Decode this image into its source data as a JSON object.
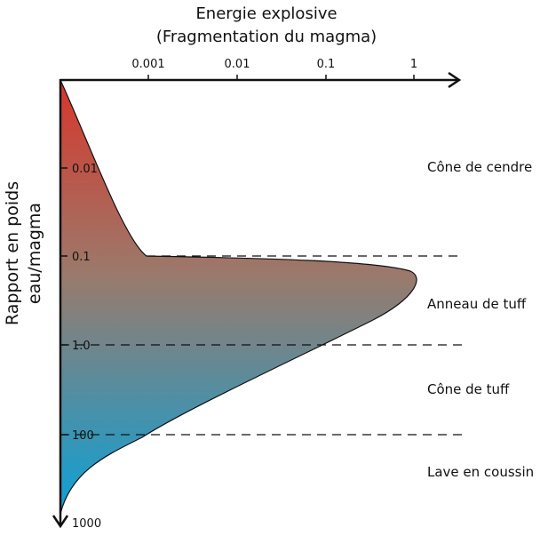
{
  "title_line1": "Energie explosive",
  "title_line2": "(Fragmentation du magma)",
  "x_axis": {
    "ticks": [
      "0.001",
      "0.01",
      "0.1",
      "1"
    ]
  },
  "y_axis": {
    "label_line1": "Rapport en poids",
    "label_line2": "eau/magma",
    "ticks": [
      "0.01",
      "0.1",
      "1.0",
      "100",
      "1000"
    ]
  },
  "zones": [
    "Cône de cendre",
    "Anneau de tuff",
    "Cône de tuff",
    "Lave en coussin"
  ],
  "colors": {
    "gradient_top": "#d8362b",
    "gradient_mid": "#9a7a6c",
    "gradient_bottom": "#0aa2d8",
    "axis": "#111111"
  }
}
